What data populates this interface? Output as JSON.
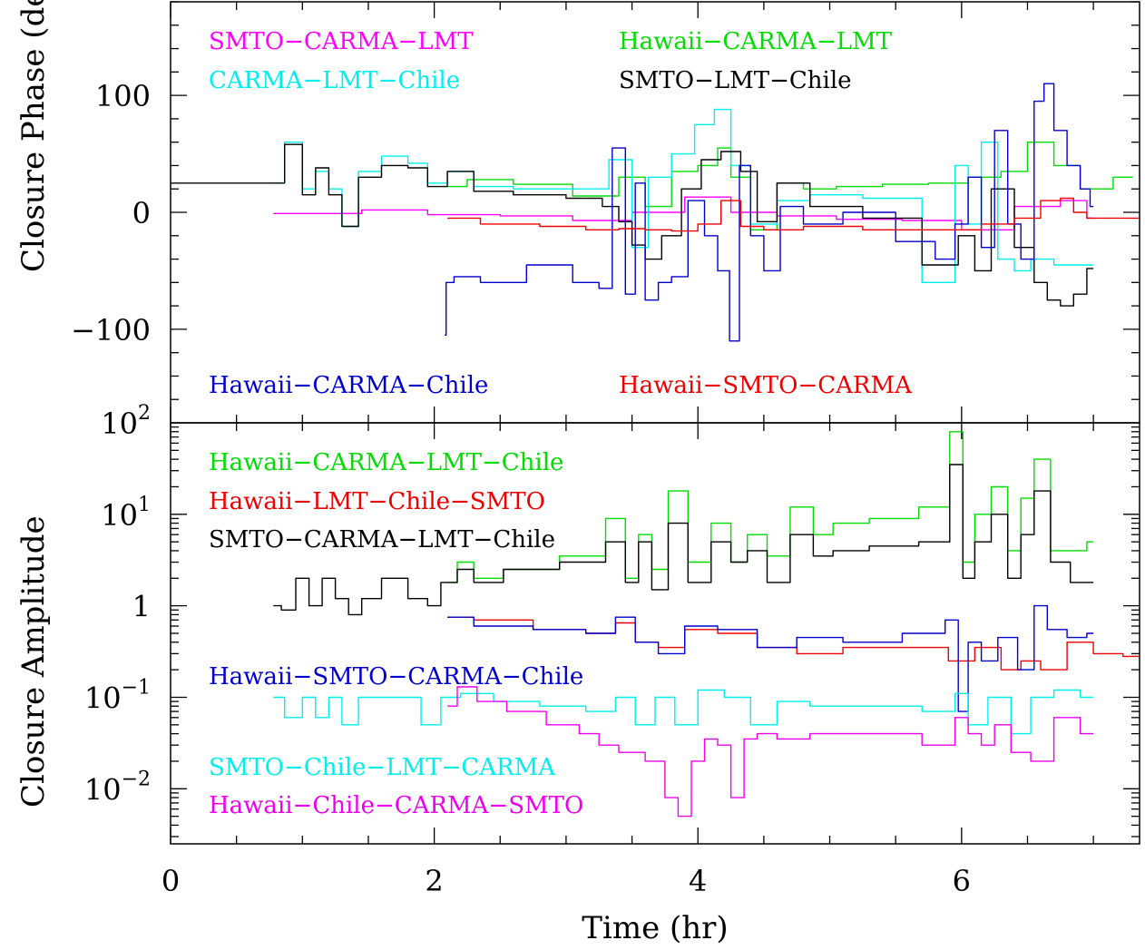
{
  "chart_data": [
    {
      "type": "line",
      "panel": "closure-phase",
      "ylabel": "Closure Phase (deg)",
      "xlabel": "",
      "xlim": [
        0,
        7.35
      ],
      "ylim": [
        -180,
        180
      ],
      "yscale": "linear",
      "x_ticks": [
        0,
        2,
        4,
        6
      ],
      "y_tick_labels": [
        {
          "value": 100,
          "label": "100"
        },
        {
          "value": 0,
          "label": "0"
        },
        {
          "value": -100,
          "label": "−100"
        }
      ],
      "grid": false,
      "legend_placement": "inside, top and bottom",
      "series": [
        {
          "name": "SMTO−CARMA−LMT",
          "color": "#ff00ff",
          "x": [
            0.78,
            1.2,
            1.7,
            2.2,
            2.8,
            3.3,
            3.7,
            4.1,
            4.4,
            4.8,
            5.3,
            5.8,
            6.2,
            6.6,
            6.9,
            7.0
          ],
          "y": [
            -1,
            -1,
            2,
            -2,
            -3,
            -7,
            0,
            13,
            0,
            -3,
            -6,
            -7,
            -15,
            5,
            10,
            -5
          ]
        },
        {
          "name": "Hawaii−CARMA−LMT",
          "color": "#00dd00",
          "x": [
            2.1,
            2.4,
            2.8,
            3.3,
            3.5,
            3.7,
            3.9,
            4.1,
            4.2,
            4.3,
            4.5,
            4.7,
            4.9,
            5.2,
            5.6,
            5.9,
            6.2,
            6.4,
            6.6,
            6.8,
            7.0,
            7.3
          ],
          "y": [
            22,
            28,
            24,
            14,
            30,
            5,
            35,
            40,
            55,
            30,
            -15,
            25,
            20,
            22,
            24,
            25,
            30,
            35,
            60,
            40,
            20,
            30
          ]
        },
        {
          "name": "CARMA−LMT−Chile",
          "color": "#00eeee",
          "x": [
            0.78,
            0.95,
            1.05,
            1.15,
            1.25,
            1.35,
            1.5,
            1.7,
            1.9,
            2.0,
            2.2,
            2.4,
            2.8,
            3.2,
            3.45,
            3.55,
            3.7,
            3.9,
            4.05,
            4.2,
            4.3,
            4.5,
            4.7,
            5.0,
            5.5,
            5.9,
            6.0,
            6.1,
            6.2,
            6.35,
            6.45,
            6.6,
            6.8,
            7.0
          ],
          "y": [
            25,
            60,
            20,
            35,
            20,
            -12,
            35,
            48,
            42,
            25,
            35,
            22,
            20,
            20,
            45,
            -30,
            30,
            50,
            75,
            88,
            40,
            -10,
            10,
            15,
            12,
            -60,
            40,
            -10,
            60,
            -40,
            -50,
            -40,
            -45,
            -45
          ]
        },
        {
          "name": "SMTO−LMT−Chile",
          "color": "#000000",
          "x": [
            0,
            0.5,
            0.78,
            0.95,
            1.05,
            1.15,
            1.25,
            1.35,
            1.5,
            1.7,
            1.9,
            2.0,
            2.2,
            2.4,
            2.8,
            3.2,
            3.35,
            3.45,
            3.55,
            3.65,
            3.8,
            3.95,
            4.1,
            4.25,
            4.4,
            4.5,
            4.7,
            5.0,
            5.5,
            5.9,
            6.05,
            6.15,
            6.3,
            6.5,
            6.6,
            6.7,
            6.8,
            6.9,
            7.0
          ],
          "y": [
            25,
            25,
            25,
            58,
            15,
            38,
            15,
            -12,
            30,
            40,
            38,
            22,
            35,
            18,
            15,
            12,
            5,
            -8,
            -28,
            -40,
            -20,
            20,
            45,
            52,
            35,
            -8,
            25,
            5,
            -5,
            -45,
            -20,
            -50,
            20,
            -30,
            -60,
            -75,
            -80,
            -70,
            -48
          ]
        },
        {
          "name": "Hawaii−CARMA−Chile",
          "color": "#0000cc",
          "x": [
            2.08,
            2.1,
            2.2,
            2.5,
            2.9,
            3.2,
            3.3,
            3.4,
            3.5,
            3.55,
            3.65,
            3.75,
            3.85,
            4.0,
            4.1,
            4.2,
            4.28,
            4.35,
            4.45,
            4.55,
            4.7,
            4.9,
            5.3,
            5.7,
            5.9,
            6.0,
            6.1,
            6.2,
            6.3,
            6.4,
            6.5,
            6.6,
            6.65,
            6.75,
            6.85,
            6.95,
            7.0
          ],
          "y": [
            -105,
            -60,
            -55,
            -60,
            -45,
            -60,
            -65,
            55,
            -70,
            25,
            -75,
            -60,
            -55,
            10,
            -20,
            -50,
            -110,
            40,
            -20,
            -50,
            5,
            -10,
            0,
            -25,
            -40,
            -10,
            30,
            -30,
            70,
            -10,
            -40,
            95,
            110,
            70,
            40,
            20,
            5
          ]
        },
        {
          "name": "Hawaii−SMTO−CARMA",
          "color": "#ee0000",
          "x": [
            2.1,
            2.6,
            3.0,
            3.3,
            3.5,
            3.7,
            3.9,
            4.1,
            4.25,
            4.4,
            4.6,
            5.0,
            5.5,
            6.0,
            6.3,
            6.5,
            6.7,
            6.8,
            6.9,
            7.0,
            7.35
          ],
          "y": [
            -5,
            -10,
            -12,
            -15,
            -14,
            -15,
            -16,
            -10,
            10,
            -12,
            -15,
            -12,
            -15,
            -15,
            -10,
            -5,
            10,
            12,
            0,
            -5,
            -5
          ]
        }
      ]
    },
    {
      "type": "line",
      "panel": "closure-amplitude",
      "ylabel": "Closure Amplitude",
      "xlabel": "Time (hr)",
      "xlim": [
        0,
        7.35
      ],
      "ylim": [
        0.0025,
        100
      ],
      "yscale": "log",
      "x_ticks": [
        0,
        2,
        4,
        6
      ],
      "x_tick_labels": [
        "0",
        "2",
        "4",
        "6"
      ],
      "y_tick_labels": [
        {
          "value": 100,
          "base": "10",
          "exp": "2"
        },
        {
          "value": 10,
          "base": "10",
          "exp": "1"
        },
        {
          "value": 1,
          "base": "1",
          "exp": ""
        },
        {
          "value": 0.1,
          "base": "10",
          "exp": "−1"
        },
        {
          "value": 0.01,
          "base": "10",
          "exp": "−2"
        }
      ],
      "grid": false,
      "legend_placement": "inside, left",
      "series": [
        {
          "name": "Hawaii−CARMA−LMT−Chile",
          "color": "#00dd00",
          "x": [
            2.1,
            2.25,
            2.35,
            2.7,
            3.2,
            3.4,
            3.5,
            3.6,
            3.7,
            3.85,
            4.0,
            4.2,
            4.3,
            4.45,
            4.6,
            4.8,
            4.95,
            5.1,
            5.5,
            5.85,
            5.97,
            6.05,
            6.15,
            6.3,
            6.4,
            6.5,
            6.6,
            6.75,
            6.9,
            7.0
          ],
          "y": [
            1.8,
            3.0,
            2.0,
            2.5,
            3.5,
            9.0,
            2.0,
            6.0,
            2.5,
            18,
            3.0,
            8.0,
            3.0,
            6.0,
            3.5,
            12,
            6.0,
            8.0,
            9.0,
            12,
            80,
            3.0,
            10,
            20,
            4.0,
            15,
            40,
            4.0,
            4.0,
            5.0
          ]
        },
        {
          "name": "Hawaii−LMT−Chile−SMTO",
          "color": "#ee0000",
          "x": [
            2.1,
            2.5,
            3.0,
            3.3,
            3.45,
            3.6,
            3.8,
            4.0,
            4.3,
            4.6,
            4.9,
            5.3,
            5.8,
            6.0,
            6.2,
            6.4,
            6.5,
            6.7,
            6.9,
            7.1,
            7.35
          ],
          "y": [
            0.75,
            0.7,
            0.55,
            0.5,
            0.65,
            0.4,
            0.35,
            0.55,
            0.5,
            0.35,
            0.3,
            0.35,
            0.35,
            0.25,
            0.35,
            0.2,
            0.25,
            0.2,
            0.4,
            0.3,
            0.28
          ]
        },
        {
          "name": "SMTO−CARMA−LMT−Chile",
          "color": "#000000",
          "x": [
            0.78,
            0.9,
            1.0,
            1.1,
            1.2,
            1.3,
            1.4,
            1.5,
            1.7,
            1.9,
            2.0,
            2.1,
            2.25,
            2.35,
            2.7,
            3.2,
            3.4,
            3.5,
            3.6,
            3.7,
            3.85,
            4.0,
            4.2,
            4.3,
            4.45,
            4.6,
            4.8,
            4.95,
            5.1,
            5.5,
            5.85,
            5.97,
            6.05,
            6.15,
            6.3,
            6.4,
            6.5,
            6.6,
            6.75,
            6.9,
            7.0
          ],
          "y": [
            1.0,
            0.9,
            2.0,
            1.0,
            2.0,
            1.2,
            0.8,
            1.2,
            2.0,
            1.2,
            1.0,
            1.8,
            2.5,
            1.8,
            2.5,
            3.0,
            5.0,
            1.8,
            5.0,
            1.5,
            8.0,
            1.8,
            5.0,
            3.0,
            4.0,
            1.8,
            6.0,
            3.5,
            4.0,
            4.5,
            5.0,
            35,
            2.0,
            5.0,
            10,
            2.0,
            6.0,
            18,
            3.0,
            1.8,
            1.8
          ]
        },
        {
          "name": "Hawaii−SMTO−CARMA−Chile",
          "color": "#0000cc",
          "x": [
            2.1,
            2.5,
            3.0,
            3.3,
            3.45,
            3.6,
            3.8,
            4.0,
            4.3,
            4.6,
            4.9,
            5.3,
            5.8,
            5.95,
            6.0,
            6.1,
            6.2,
            6.35,
            6.5,
            6.6,
            6.7,
            6.9,
            7.0
          ],
          "y": [
            0.75,
            0.6,
            0.55,
            0.5,
            0.75,
            0.4,
            0.3,
            0.6,
            0.55,
            0.35,
            0.45,
            0.4,
            0.5,
            0.7,
            0.07,
            0.4,
            0.25,
            0.45,
            0.2,
            1.0,
            0.55,
            0.45,
            0.5
          ]
        },
        {
          "name": "SMTO−Chile−LMT−CARMA",
          "color": "#00eeee",
          "x": [
            0.78,
            0.95,
            1.05,
            1.15,
            1.25,
            1.35,
            1.5,
            1.8,
            2.0,
            2.1,
            2.3,
            2.6,
            3.0,
            3.3,
            3.45,
            3.6,
            3.75,
            3.9,
            4.1,
            4.3,
            4.5,
            4.7,
            5.0,
            5.5,
            5.9,
            6.0,
            6.1,
            6.3,
            6.45,
            6.6,
            6.8,
            7.0
          ],
          "y": [
            0.1,
            0.06,
            0.1,
            0.06,
            0.1,
            0.05,
            0.1,
            0.1,
            0.05,
            0.1,
            0.11,
            0.09,
            0.08,
            0.07,
            0.1,
            0.05,
            0.1,
            0.05,
            0.12,
            0.1,
            0.05,
            0.09,
            0.08,
            0.08,
            0.07,
            0.11,
            0.05,
            0.1,
            0.04,
            0.1,
            0.12,
            0.1
          ]
        },
        {
          "name": "Hawaii−Chile−CARMA−SMTO",
          "color": "#ee00ee",
          "x": [
            2.1,
            2.25,
            2.4,
            2.7,
            3.0,
            3.2,
            3.3,
            3.5,
            3.7,
            3.8,
            3.9,
            4.0,
            4.1,
            4.2,
            4.3,
            4.4,
            4.5,
            4.7,
            5.0,
            5.5,
            5.9,
            6.0,
            6.1,
            6.2,
            6.3,
            6.45,
            6.6,
            6.8,
            7.0
          ],
          "y": [
            0.08,
            0.13,
            0.09,
            0.07,
            0.05,
            0.04,
            0.03,
            0.025,
            0.02,
            0.008,
            0.005,
            0.02,
            0.035,
            0.03,
            0.008,
            0.035,
            0.04,
            0.035,
            0.04,
            0.04,
            0.03,
            0.06,
            0.04,
            0.03,
            0.05,
            0.025,
            0.02,
            0.06,
            0.04
          ]
        }
      ]
    }
  ],
  "legends": {
    "phase_top": [
      {
        "text": "SMTO−CARMA−LMT",
        "color": "#ff00ff"
      },
      {
        "text": "Hawaii−CARMA−LMT",
        "color": "#00dd00"
      },
      {
        "text": "CARMA−LMT−Chile",
        "color": "#00eeee"
      },
      {
        "text": "SMTO−LMT−Chile",
        "color": "#000000"
      }
    ],
    "phase_bottom": [
      {
        "text": "Hawaii−CARMA−Chile",
        "color": "#0000cc"
      },
      {
        "text": "Hawaii−SMTO−CARMA",
        "color": "#ee0000"
      }
    ],
    "amp_top": [
      {
        "text": "Hawaii−CARMA−LMT−Chile",
        "color": "#00dd00"
      },
      {
        "text": "Hawaii−LMT−Chile−SMTO",
        "color": "#ee0000"
      },
      {
        "text": "SMTO−CARMA−LMT−Chile",
        "color": "#000000"
      }
    ],
    "amp_mid": [
      {
        "text": "Hawaii−SMTO−CARMA−Chile",
        "color": "#0000cc"
      }
    ],
    "amp_bottom": [
      {
        "text": "SMTO−Chile−LMT−CARMA",
        "color": "#00eeee"
      },
      {
        "text": "Hawaii−Chile−CARMA−SMTO",
        "color": "#ee00ee"
      }
    ]
  }
}
